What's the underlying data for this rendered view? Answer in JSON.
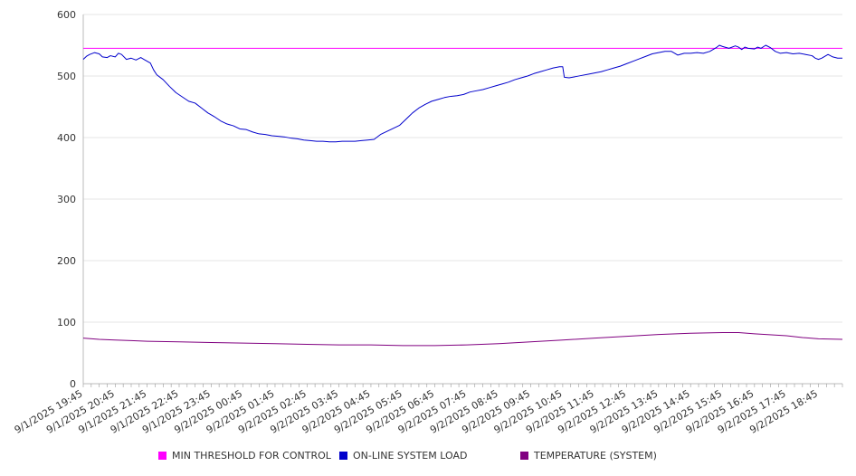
{
  "chart_data": {
    "type": "line",
    "title": "",
    "xlabel": "",
    "ylabel": "",
    "ylim": [
      0,
      600
    ],
    "y_ticks": [
      0,
      100,
      200,
      300,
      400,
      500,
      600
    ],
    "grid": "horizontal",
    "legend_position": "bottom",
    "x_tick_labels": [
      "9/1/2025 19:45",
      "9/1/2025 20:45",
      "9/1/2025 21:45",
      "9/1/2025 22:45",
      "9/1/2025 23:45",
      "9/2/2025 00:45",
      "9/2/2025 01:45",
      "9/2/2025 02:45",
      "9/2/2025 03:45",
      "9/2/2025 04:45",
      "9/2/2025 05:45",
      "9/2/2025 06:45",
      "9/2/2025 07:45",
      "9/2/2025 08:45",
      "9/2/2025 09:45",
      "9/2/2025 10:45",
      "9/2/2025 11:45",
      "9/2/2025 12:45",
      "9/2/2025 13:45",
      "9/2/2025 14:45",
      "9/2/2025 15:45",
      "9/2/2025 16:45",
      "9/2/2025 17:45",
      "9/2/2025 18:45"
    ],
    "x_range_hours": [
      0,
      23.75
    ],
    "series": [
      {
        "name": "MIN THRESHOLD FOR CONTROL",
        "color": "#ff00ff",
        "points": [
          [
            0,
            545
          ],
          [
            23.75,
            545
          ]
        ]
      },
      {
        "name": "ON-LINE SYSTEM LOAD",
        "color": "#0000cc",
        "points": [
          [
            0,
            527
          ],
          [
            0.1,
            532
          ],
          [
            0.2,
            535
          ],
          [
            0.35,
            538
          ],
          [
            0.5,
            536
          ],
          [
            0.6,
            531
          ],
          [
            0.75,
            530
          ],
          [
            0.85,
            533
          ],
          [
            1.0,
            531
          ],
          [
            1.1,
            537
          ],
          [
            1.2,
            535
          ],
          [
            1.35,
            527
          ],
          [
            1.5,
            529
          ],
          [
            1.65,
            526
          ],
          [
            1.8,
            530
          ],
          [
            1.9,
            527
          ],
          [
            2.0,
            524
          ],
          [
            2.1,
            521
          ],
          [
            2.2,
            510
          ],
          [
            2.3,
            502
          ],
          [
            2.5,
            494
          ],
          [
            2.7,
            483
          ],
          [
            2.9,
            473
          ],
          [
            3.1,
            466
          ],
          [
            3.3,
            459
          ],
          [
            3.5,
            456
          ],
          [
            3.7,
            448
          ],
          [
            3.9,
            440
          ],
          [
            4.1,
            434
          ],
          [
            4.3,
            427
          ],
          [
            4.5,
            422
          ],
          [
            4.7,
            419
          ],
          [
            4.9,
            414
          ],
          [
            5.1,
            413
          ],
          [
            5.3,
            409
          ],
          [
            5.5,
            406
          ],
          [
            5.7,
            405
          ],
          [
            5.9,
            403
          ],
          [
            6.1,
            402
          ],
          [
            6.3,
            401
          ],
          [
            6.5,
            399
          ],
          [
            6.7,
            398
          ],
          [
            6.9,
            396
          ],
          [
            7.1,
            395
          ],
          [
            7.3,
            394
          ],
          [
            7.5,
            394
          ],
          [
            7.7,
            393
          ],
          [
            7.9,
            393
          ],
          [
            8.1,
            394
          ],
          [
            8.3,
            394
          ],
          [
            8.5,
            394
          ],
          [
            8.7,
            395
          ],
          [
            8.9,
            396
          ],
          [
            9.1,
            397
          ],
          [
            9.3,
            405
          ],
          [
            9.5,
            410
          ],
          [
            9.7,
            415
          ],
          [
            9.9,
            420
          ],
          [
            10.1,
            430
          ],
          [
            10.3,
            440
          ],
          [
            10.5,
            448
          ],
          [
            10.7,
            454
          ],
          [
            10.9,
            459
          ],
          [
            11.1,
            462
          ],
          [
            11.3,
            465
          ],
          [
            11.5,
            467
          ],
          [
            11.7,
            468
          ],
          [
            11.9,
            470
          ],
          [
            12.1,
            474
          ],
          [
            12.3,
            476
          ],
          [
            12.5,
            478
          ],
          [
            12.7,
            481
          ],
          [
            12.9,
            484
          ],
          [
            13.1,
            487
          ],
          [
            13.3,
            490
          ],
          [
            13.5,
            494
          ],
          [
            13.7,
            497
          ],
          [
            13.9,
            500
          ],
          [
            14.1,
            504
          ],
          [
            14.3,
            507
          ],
          [
            14.5,
            510
          ],
          [
            14.7,
            513
          ],
          [
            14.9,
            515
          ],
          [
            15.0,
            515
          ],
          [
            15.05,
            498
          ],
          [
            15.2,
            497
          ],
          [
            15.4,
            499
          ],
          [
            15.6,
            501
          ],
          [
            15.8,
            503
          ],
          [
            16.0,
            505
          ],
          [
            16.2,
            507
          ],
          [
            16.4,
            510
          ],
          [
            16.6,
            513
          ],
          [
            16.8,
            516
          ],
          [
            17.0,
            520
          ],
          [
            17.2,
            524
          ],
          [
            17.4,
            528
          ],
          [
            17.6,
            532
          ],
          [
            17.8,
            536
          ],
          [
            18.0,
            538
          ],
          [
            18.2,
            540
          ],
          [
            18.4,
            540
          ],
          [
            18.5,
            537
          ],
          [
            18.6,
            534
          ],
          [
            18.8,
            537
          ],
          [
            19.0,
            537
          ],
          [
            19.2,
            538
          ],
          [
            19.4,
            537
          ],
          [
            19.6,
            540
          ],
          [
            19.8,
            546
          ],
          [
            19.9,
            550
          ],
          [
            20.0,
            548
          ],
          [
            20.2,
            545
          ],
          [
            20.4,
            549
          ],
          [
            20.5,
            547
          ],
          [
            20.6,
            543
          ],
          [
            20.7,
            547
          ],
          [
            20.8,
            545
          ],
          [
            21.0,
            544
          ],
          [
            21.1,
            547
          ],
          [
            21.2,
            545
          ],
          [
            21.35,
            550
          ],
          [
            21.5,
            546
          ],
          [
            21.65,
            540
          ],
          [
            21.8,
            537
          ],
          [
            22.0,
            538
          ],
          [
            22.2,
            536
          ],
          [
            22.4,
            537
          ],
          [
            22.6,
            535
          ],
          [
            22.8,
            533
          ],
          [
            22.9,
            529
          ],
          [
            23.0,
            527
          ],
          [
            23.1,
            529
          ],
          [
            23.3,
            535
          ],
          [
            23.45,
            531
          ],
          [
            23.6,
            529
          ],
          [
            23.75,
            529
          ]
        ]
      },
      {
        "name": "TEMPERATURE (SYSTEM)",
        "color": "#800080",
        "points": [
          [
            0,
            74
          ],
          [
            0.5,
            72
          ],
          [
            1.0,
            71
          ],
          [
            1.5,
            70
          ],
          [
            2.0,
            69
          ],
          [
            3.0,
            68
          ],
          [
            4.0,
            67
          ],
          [
            5.0,
            66
          ],
          [
            6.0,
            65
          ],
          [
            7.0,
            64
          ],
          [
            8.0,
            63
          ],
          [
            9.0,
            63
          ],
          [
            10.0,
            62
          ],
          [
            11.0,
            62
          ],
          [
            12.0,
            63
          ],
          [
            13.0,
            65
          ],
          [
            14.0,
            68
          ],
          [
            15.0,
            71
          ],
          [
            16.0,
            74
          ],
          [
            17.0,
            77
          ],
          [
            18.0,
            80
          ],
          [
            19.0,
            82
          ],
          [
            20.0,
            83
          ],
          [
            20.5,
            83
          ],
          [
            21.0,
            81
          ],
          [
            22.0,
            78
          ],
          [
            22.5,
            75
          ],
          [
            23.0,
            73
          ],
          [
            23.75,
            72
          ]
        ]
      }
    ]
  },
  "legend": {
    "items": [
      {
        "label": "MIN THRESHOLD FOR CONTROL",
        "color": "#ff00ff"
      },
      {
        "label": "ON-LINE SYSTEM LOAD",
        "color": "#0000cc"
      },
      {
        "label": "TEMPERATURE (SYSTEM)",
        "color": "#800080"
      }
    ]
  }
}
